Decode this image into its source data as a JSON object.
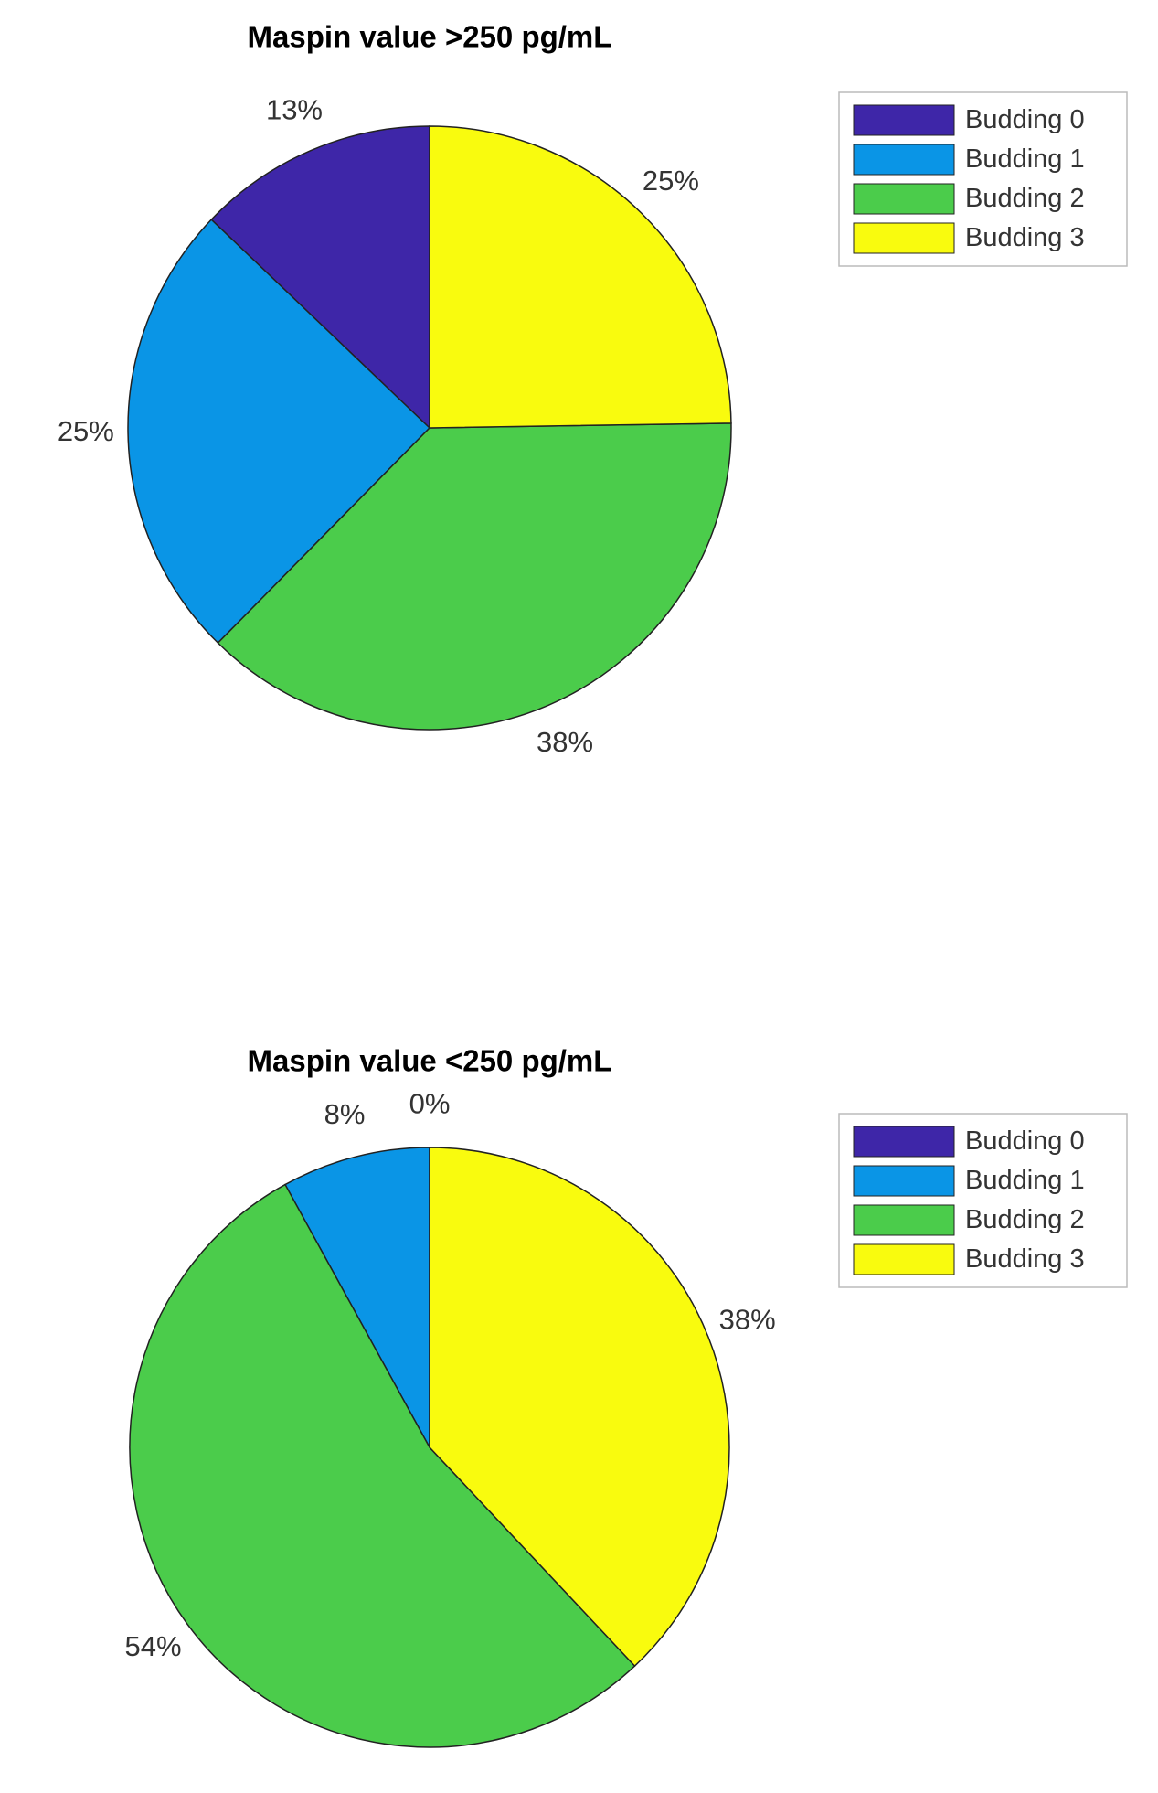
{
  "chart_data": [
    {
      "type": "pie",
      "title": "Maspin value >250 pg/mL",
      "categories": [
        "Budding 0",
        "Budding 1",
        "Budding 2",
        "Budding 3"
      ],
      "values": [
        13,
        25,
        38,
        25
      ],
      "value_labels": [
        "13%",
        "25%",
        "38%",
        "25%"
      ],
      "colors": [
        "#3e26a8",
        "#0a95e6",
        "#4bcc4b",
        "#f9fb0e"
      ],
      "direction": "counterclockwise",
      "legend": "right"
    },
    {
      "type": "pie",
      "title": "Maspin value <250 pg/mL",
      "categories": [
        "Budding 0",
        "Budding 1",
        "Budding 2",
        "Budding 3"
      ],
      "values": [
        0,
        8,
        54,
        38
      ],
      "value_labels": [
        "0%",
        "8%",
        "54%",
        "38%"
      ],
      "colors": [
        "#3e26a8",
        "#0a95e6",
        "#4bcc4b",
        "#f9fb0e"
      ],
      "direction": "counterclockwise",
      "legend": "right"
    }
  ]
}
